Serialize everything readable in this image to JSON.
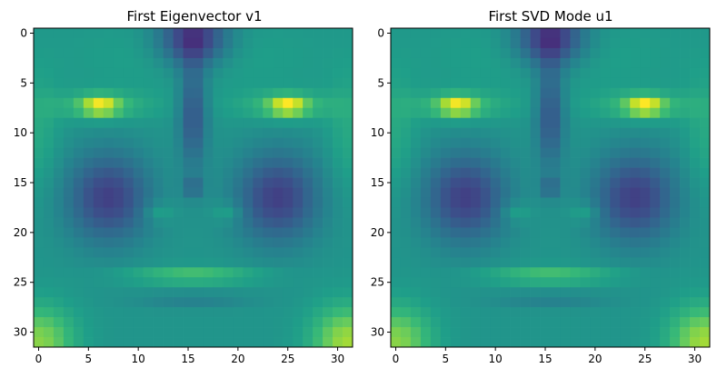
{
  "chart_data": [
    {
      "type": "heatmap",
      "title": "First Eigenvector v1",
      "xlabel": "",
      "ylabel": "",
      "grid_size": [
        32,
        32
      ],
      "xlim": [
        -0.5,
        31.5
      ],
      "ylim": [
        31.5,
        -0.5
      ],
      "x_ticks": [
        0,
        5,
        10,
        15,
        20,
        25,
        30
      ],
      "y_ticks": [
        0,
        5,
        10,
        15,
        20,
        25,
        30
      ],
      "colormap": "viridis",
      "grid": false,
      "legend": "none",
      "values_description": "32x32 eigenface-like pattern; values normalized 0 (dark purple) to 1 (yellow); generated per cell from the same face model for both panels"
    },
    {
      "type": "heatmap",
      "title": "First SVD Mode u1",
      "xlabel": "",
      "ylabel": "",
      "grid_size": [
        32,
        32
      ],
      "xlim": [
        -0.5,
        31.5
      ],
      "ylim": [
        31.5,
        -0.5
      ],
      "x_ticks": [
        0,
        5,
        10,
        15,
        20,
        25,
        30
      ],
      "y_ticks": [
        0,
        5,
        10,
        15,
        20,
        25,
        30
      ],
      "colormap": "viridis",
      "grid": false,
      "legend": "none",
      "values_description": "identical to the first panel"
    }
  ]
}
